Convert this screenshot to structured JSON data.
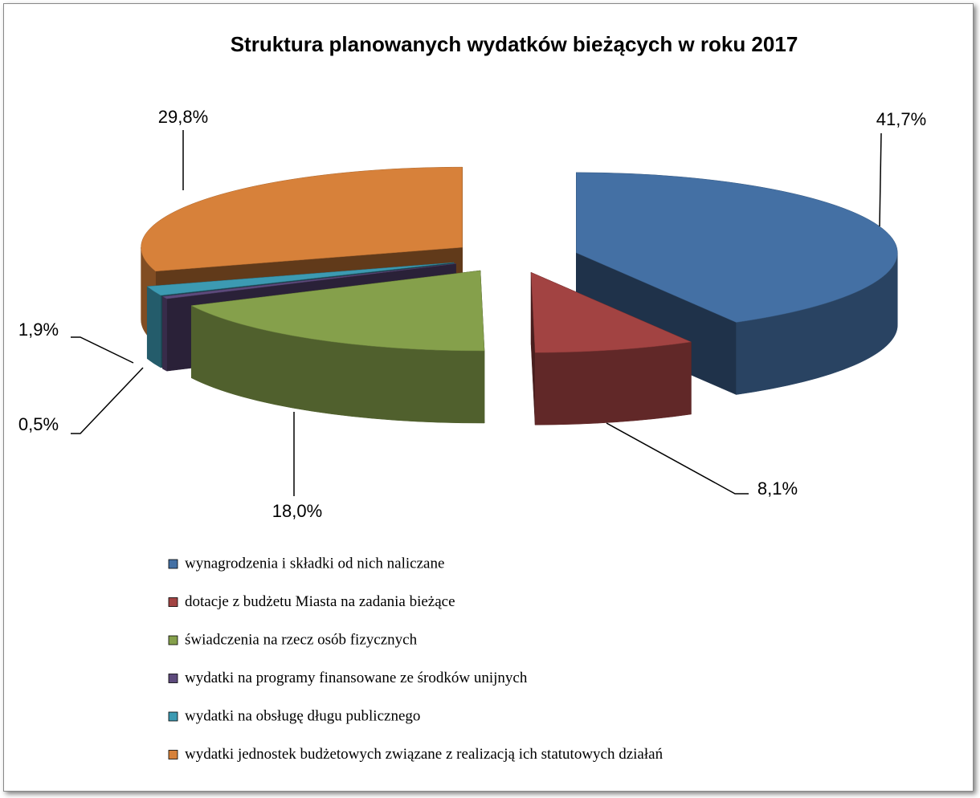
{
  "chart_data": {
    "type": "pie3d",
    "title": "Struktura planowanych wydatków bieżących  w roku 2017",
    "categories": [
      "wynagrodzenia i składki od nich naliczane",
      "dotacje z budżetu Miasta na zadania bieżące",
      "świadczenia na rzecz osób fizycznych",
      "wydatki na programy finansowane ze środków unijnych",
      "wydatki na obsługę długu publicznego",
      "wydatki  jednostek budżetowych związane z realizacją ich statutowych działań"
    ],
    "values": [
      41.7,
      8.1,
      18.0,
      0.5,
      1.9,
      29.8
    ],
    "value_labels": [
      "41,7%",
      "8,1%",
      "18,0%",
      "0,5%",
      "1,9%",
      "29,8%"
    ],
    "colors": [
      "#4470a4",
      "#a24342",
      "#85a04b",
      "#5d4a7c",
      "#3c9ab2",
      "#d7813a"
    ],
    "legend": "bottom"
  }
}
